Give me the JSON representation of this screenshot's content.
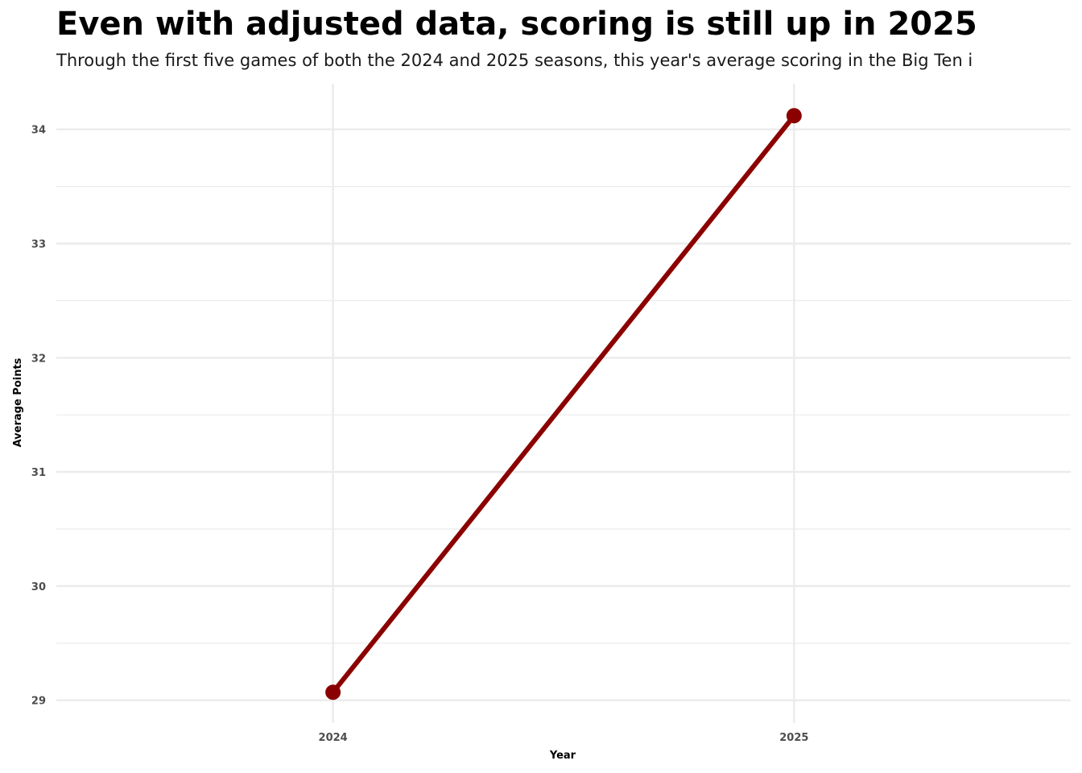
{
  "chart_data": {
    "type": "line",
    "title": "Even with adjusted data, scoring is still up in 2025",
    "subtitle": "Through the first five games of both the 2024 and 2025 seasons, this year's average scoring in the Big Ten i",
    "xlabel": "Year",
    "ylabel": "Average Points",
    "categories": [
      "2024",
      "2025"
    ],
    "series": [
      {
        "values": [
          29.07,
          34.12
        ]
      }
    ],
    "ylim": [
      28.8,
      34.4
    ],
    "y_ticks": [
      29,
      30,
      31,
      32,
      33,
      34
    ],
    "grid": true,
    "legend": "none",
    "colors": {
      "line": "#8b0000",
      "grid": "#ebebeb",
      "background": "#ffffff"
    }
  }
}
